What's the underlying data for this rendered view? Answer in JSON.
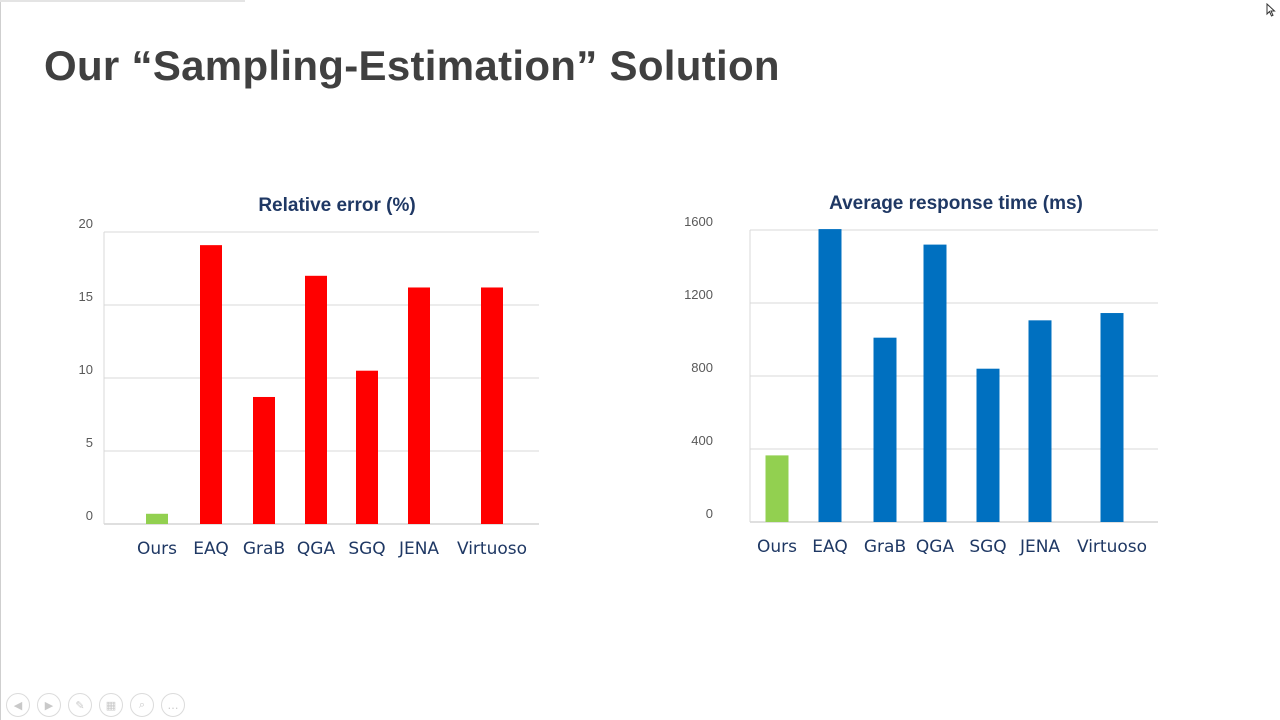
{
  "slide": {
    "title": "Our “Sampling-Estimation” Solution"
  },
  "chart_data": [
    {
      "type": "bar",
      "title": "Relative error (%)",
      "categories": [
        "Ours",
        "EAQ",
        "GraB",
        "QGA",
        "SGQ",
        "JENA",
        "Virtuoso"
      ],
      "values": [
        0.7,
        19.1,
        8.7,
        17.0,
        10.5,
        16.2,
        16.2
      ],
      "colors": [
        "#92d050",
        "#ff0000",
        "#ff0000",
        "#ff0000",
        "#ff0000",
        "#ff0000",
        "#ff0000"
      ],
      "yticks": [
        0,
        5,
        10,
        15,
        20
      ],
      "ylim": [
        0,
        20
      ],
      "xlabel": "",
      "ylabel": "",
      "grid": true,
      "legend": "none"
    },
    {
      "type": "bar",
      "title": "Average response time (ms)",
      "categories": [
        "Ours",
        "EAQ",
        "GraB",
        "QGA",
        "SGQ",
        "JENA",
        "Virtuoso"
      ],
      "values": [
        365,
        1605,
        1010,
        1520,
        840,
        1105,
        1145
      ],
      "colors": [
        "#92d050",
        "#0070c0",
        "#0070c0",
        "#0070c0",
        "#0070c0",
        "#0070c0",
        "#0070c0"
      ],
      "yticks": [
        0,
        400,
        800,
        1200,
        1600
      ],
      "ylim": [
        0,
        1600
      ],
      "xlabel": "",
      "ylabel": "",
      "grid": true,
      "legend": "none"
    }
  ],
  "controls": [
    {
      "icon": "previous-icon",
      "glyph": "◀"
    },
    {
      "icon": "next-icon",
      "glyph": "▶"
    },
    {
      "icon": "pen-icon",
      "glyph": "✎"
    },
    {
      "icon": "slides-grid-icon",
      "glyph": "▦"
    },
    {
      "icon": "zoom-icon",
      "glyph": "⌕"
    },
    {
      "icon": "more-icon",
      "glyph": "…"
    }
  ]
}
